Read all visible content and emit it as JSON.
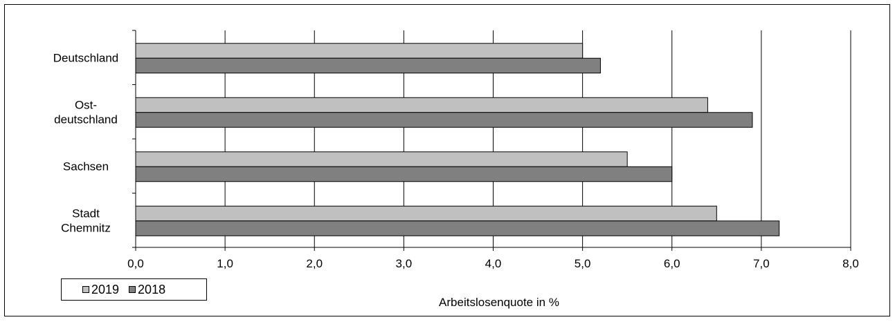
{
  "chart_data": {
    "type": "bar",
    "orientation": "horizontal",
    "categories": [
      "Deutschland",
      "Ost-\ndeutschland",
      "Sachsen",
      "Stadt\nChemnitz"
    ],
    "series": [
      {
        "name": "2019",
        "values": [
          5.0,
          6.4,
          5.5,
          6.5
        ],
        "color": "#c0c0c0"
      },
      {
        "name": "2018",
        "values": [
          5.2,
          6.9,
          6.0,
          7.2
        ],
        "color": "#808080"
      }
    ],
    "xlim": [
      0,
      8
    ],
    "xticks": [
      "0,0",
      "1,0",
      "2,0",
      "3,0",
      "4,0",
      "5,0",
      "6,0",
      "7,0",
      "8,0"
    ],
    "xlabel": "Arbeitslosenquote in %",
    "grid": true,
    "legend_position": "bottom-left"
  }
}
